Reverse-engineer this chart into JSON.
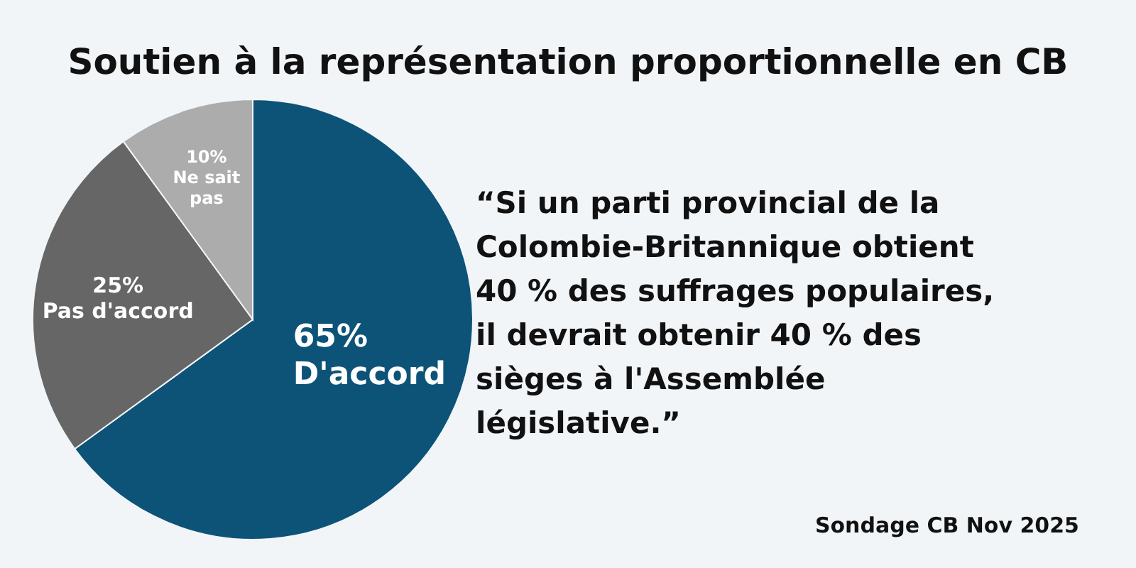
{
  "chart_data": {
    "type": "pie",
    "title": "Soutien à la représentation proportionnelle en CB",
    "categories": [
      "D'accord",
      "Pas d'accord",
      "Ne sait pas"
    ],
    "values": [
      65,
      25,
      10
    ],
    "value_labels": [
      "65%",
      "25%",
      "10%"
    ],
    "colors": [
      "#0d5378",
      "#666666",
      "#acacac"
    ],
    "annotations": [
      "“Si un parti provincial de la Colombie-Britannique obtient 40 % des suffrages populaires, il devrait obtenir 40 % des sièges à l'Assemblée législative.”",
      "Sondage CB Nov 2025"
    ]
  }
}
